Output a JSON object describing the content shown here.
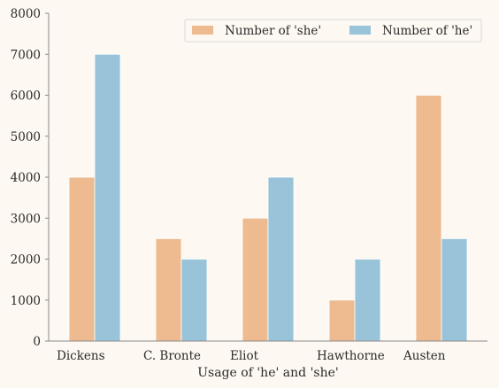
{
  "chart_data": {
    "type": "bar",
    "categories": [
      "Dickens",
      "C. Bronte",
      "Eliot",
      "Hawthorne",
      "Austen"
    ],
    "series": [
      {
        "name": "Number of 'she'",
        "values": [
          4000,
          2500,
          3000,
          1000,
          6000
        ],
        "color": "#edbb8f"
      },
      {
        "name": "Number of 'he'",
        "values": [
          7000,
          2000,
          4000,
          2000,
          2500
        ],
        "color": "#98c3d8"
      }
    ],
    "xlabel": "Usage of 'he' and 'she'",
    "ylabel": "",
    "ylim": [
      0,
      8000
    ],
    "yticks": [
      "0",
      "1000",
      "2000",
      "3000",
      "4000",
      "5000",
      "6000",
      "7000",
      "8000"
    ],
    "grid": false,
    "legend_position": "top-right",
    "colors": {
      "plot_background": "#fdf8f1",
      "axis": "#8a8a8a"
    }
  }
}
